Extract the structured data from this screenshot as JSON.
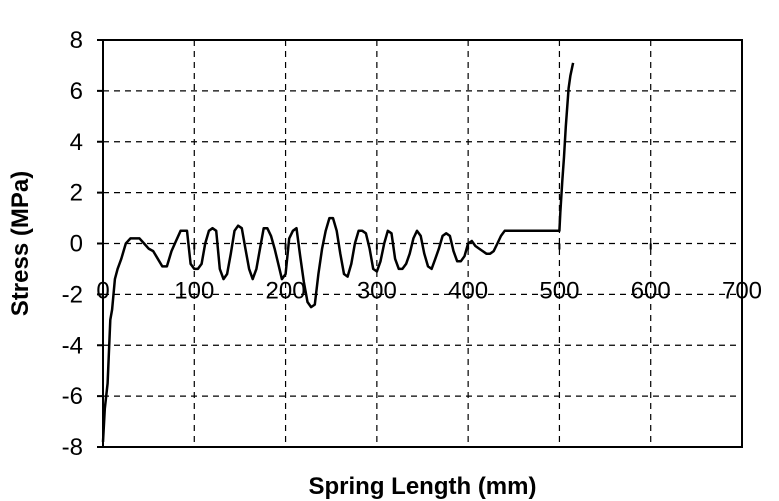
{
  "chart_data": {
    "type": "line",
    "title": "",
    "xlabel": "Spring Length (mm)",
    "ylabel": "Stress (MPa)",
    "xlim": [
      0,
      700
    ],
    "ylim": [
      -8,
      8
    ],
    "x_ticks": [
      0,
      100,
      200,
      300,
      400,
      500,
      600,
      700
    ],
    "y_ticks": [
      -8,
      -6,
      -4,
      -2,
      0,
      2,
      4,
      6,
      8
    ],
    "grid": true,
    "grid_style": "dashed",
    "legend": "none",
    "line_color": "#000000",
    "series": [
      {
        "x": [
          0,
          2,
          5,
          8,
          10,
          13,
          16,
          20,
          25,
          30,
          35,
          40,
          45,
          50,
          55,
          60,
          65,
          70,
          75,
          80,
          85,
          88,
          92,
          96,
          100,
          104,
          108,
          112,
          116,
          120,
          124,
          128,
          132,
          136,
          140,
          144,
          148,
          152,
          156,
          160,
          164,
          168,
          172,
          176,
          180,
          184,
          188,
          192,
          196,
          200,
          204,
          208,
          212,
          216,
          220,
          224,
          228,
          232,
          236,
          240,
          244,
          248,
          252,
          256,
          260,
          264,
          268,
          272,
          276,
          280,
          284,
          288,
          292,
          296,
          300,
          304,
          308,
          312,
          316,
          320,
          324,
          328,
          332,
          336,
          340,
          344,
          348,
          352,
          356,
          360,
          364,
          368,
          372,
          376,
          380,
          384,
          388,
          392,
          396,
          400,
          404,
          408,
          412,
          416,
          420,
          424,
          428,
          432,
          436,
          440,
          444,
          448,
          452,
          456,
          460,
          464,
          468,
          472,
          476,
          480,
          484,
          488,
          492,
          496,
          500,
          501,
          503,
          505,
          507,
          510,
          512,
          515
        ],
        "y": [
          -7.8,
          -6.5,
          -5.5,
          -3,
          -2.6,
          -1.4,
          -1,
          -0.6,
          0,
          0.2,
          0.2,
          0.2,
          0,
          -0.2,
          -0.3,
          -0.6,
          -0.9,
          -0.9,
          -0.3,
          0.1,
          0.5,
          0.5,
          0.5,
          -0.8,
          -1,
          -1,
          -0.8,
          0,
          0.5,
          0.6,
          0.5,
          -1,
          -1.4,
          -1.2,
          -0.4,
          0.5,
          0.7,
          0.6,
          -0.2,
          -1,
          -1.4,
          -1,
          -0.2,
          0.6,
          0.6,
          0.3,
          -0.2,
          -0.8,
          -1.4,
          -1.2,
          0.2,
          0.5,
          0.6,
          -0.5,
          -1.5,
          -2.3,
          -2.5,
          -2.4,
          -1.2,
          -0.2,
          0.5,
          1,
          1,
          0.5,
          -0.4,
          -1.2,
          -1.3,
          -0.8,
          0,
          0.5,
          0.5,
          0.4,
          -0.2,
          -1,
          -1.1,
          -0.7,
          0,
          0.5,
          0.4,
          -0.6,
          -1,
          -1,
          -0.8,
          -0.4,
          0.2,
          0.5,
          0.3,
          -0.4,
          -0.9,
          -1,
          -0.6,
          -0.2,
          0.3,
          0.4,
          0.3,
          -0.3,
          -0.7,
          -0.7,
          -0.5,
          0,
          0.1,
          -0.1,
          -0.2,
          -0.3,
          -0.4,
          -0.4,
          -0.3,
          0,
          0.3,
          0.5,
          0.5,
          0.5,
          0.5,
          0.5,
          0.5,
          0.5,
          0.5,
          0.5,
          0.5,
          0.5,
          0.5,
          0.5,
          0.5,
          0.5,
          0.5,
          1.2,
          2.4,
          3.4,
          4.6,
          6.1,
          6.6,
          7.1
        ]
      }
    ]
  }
}
